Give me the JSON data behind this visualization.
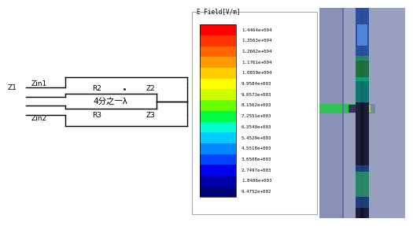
{
  "bg_color": "#ffffff",
  "colorbar_label": "E Field[V/m]",
  "colorbar_values": [
    "1.4464e+004",
    "1.3563e+004",
    "1.2662e+004",
    "1.1761e+004",
    "1.0859e+004",
    "9.9584e+003",
    "9.0573e+003",
    "8.1562e+003",
    "7.2551e+003",
    "6.3540e+003",
    "5.4529e+003",
    "4.5518e+003",
    "3.6508e+003",
    "2.7497e+003",
    "1.8486e+003",
    "9.4752e+002"
  ],
  "colorbar_colors": [
    "#ff0000",
    "#ff3300",
    "#ff6600",
    "#ff9900",
    "#ffcc00",
    "#ffff00",
    "#ccff00",
    "#66ff00",
    "#00ff44",
    "#00ffcc",
    "#00ccff",
    "#0088ff",
    "#0044ff",
    "#0000ee",
    "#0000aa",
    "#000077"
  ],
  "label_Z1": "Z1",
  "label_Zin1": "Zin1",
  "label_Zin2": "Zin2",
  "label_Z2": "Z2",
  "label_Z3": "Z3",
  "label_R2": "R2",
  "label_R3": "R3",
  "label_center": "4分之一λ",
  "line_color": "#000000",
  "sim_bg": "#9aa0c0",
  "sim_left_bg": "#8890b5",
  "sim_antenna_dark": "#1e1e3a",
  "sim_antenna_mid": "#2a2a50"
}
